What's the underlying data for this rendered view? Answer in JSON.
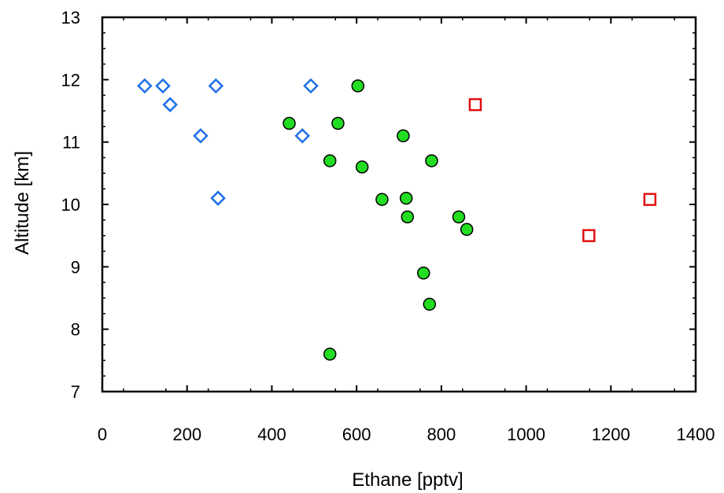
{
  "chart_data": {
    "type": "scatter",
    "title": "",
    "xlabel": "Ethane [pptv]",
    "ylabel": "Altitude [km]",
    "xlim": [
      0,
      1400
    ],
    "ylim": [
      7,
      13
    ],
    "x_ticks": [
      0,
      200,
      400,
      600,
      800,
      1000,
      1200,
      1400
    ],
    "y_ticks": [
      7,
      8,
      9,
      10,
      11,
      12,
      13
    ],
    "x_tick_labels": [
      "0",
      "200",
      "400",
      "600",
      "800",
      "1000",
      "1200",
      "1400"
    ],
    "y_tick_labels": [
      "7",
      "8",
      "9",
      "10",
      "11",
      "12",
      "13"
    ],
    "grid": false,
    "legend": null,
    "series": [
      {
        "marker": "diamond-open",
        "color": "#1e6fe6",
        "points": [
          [
            100,
            11.9
          ],
          [
            143,
            11.9
          ],
          [
            160,
            11.6
          ],
          [
            232,
            11.1
          ],
          [
            268,
            11.9
          ],
          [
            273,
            10.1
          ],
          [
            472,
            11.1
          ],
          [
            492,
            11.9
          ]
        ]
      },
      {
        "marker": "circle-filled",
        "color": "#22dd22",
        "points": [
          [
            441,
            11.3
          ],
          [
            537,
            10.7
          ],
          [
            537,
            7.6
          ],
          [
            556,
            11.3
          ],
          [
            603,
            11.9
          ],
          [
            613,
            10.6
          ],
          [
            660,
            10.08
          ],
          [
            710,
            11.1
          ],
          [
            717,
            10.1
          ],
          [
            720,
            9.8
          ],
          [
            758,
            8.9
          ],
          [
            772,
            8.4
          ],
          [
            777,
            10.7
          ],
          [
            841,
            9.8
          ],
          [
            860,
            9.6
          ]
        ]
      },
      {
        "marker": "square-open",
        "color": "#e01010",
        "points": [
          [
            880,
            11.6
          ],
          [
            1148,
            9.5
          ],
          [
            1292,
            10.08
          ]
        ]
      }
    ]
  }
}
